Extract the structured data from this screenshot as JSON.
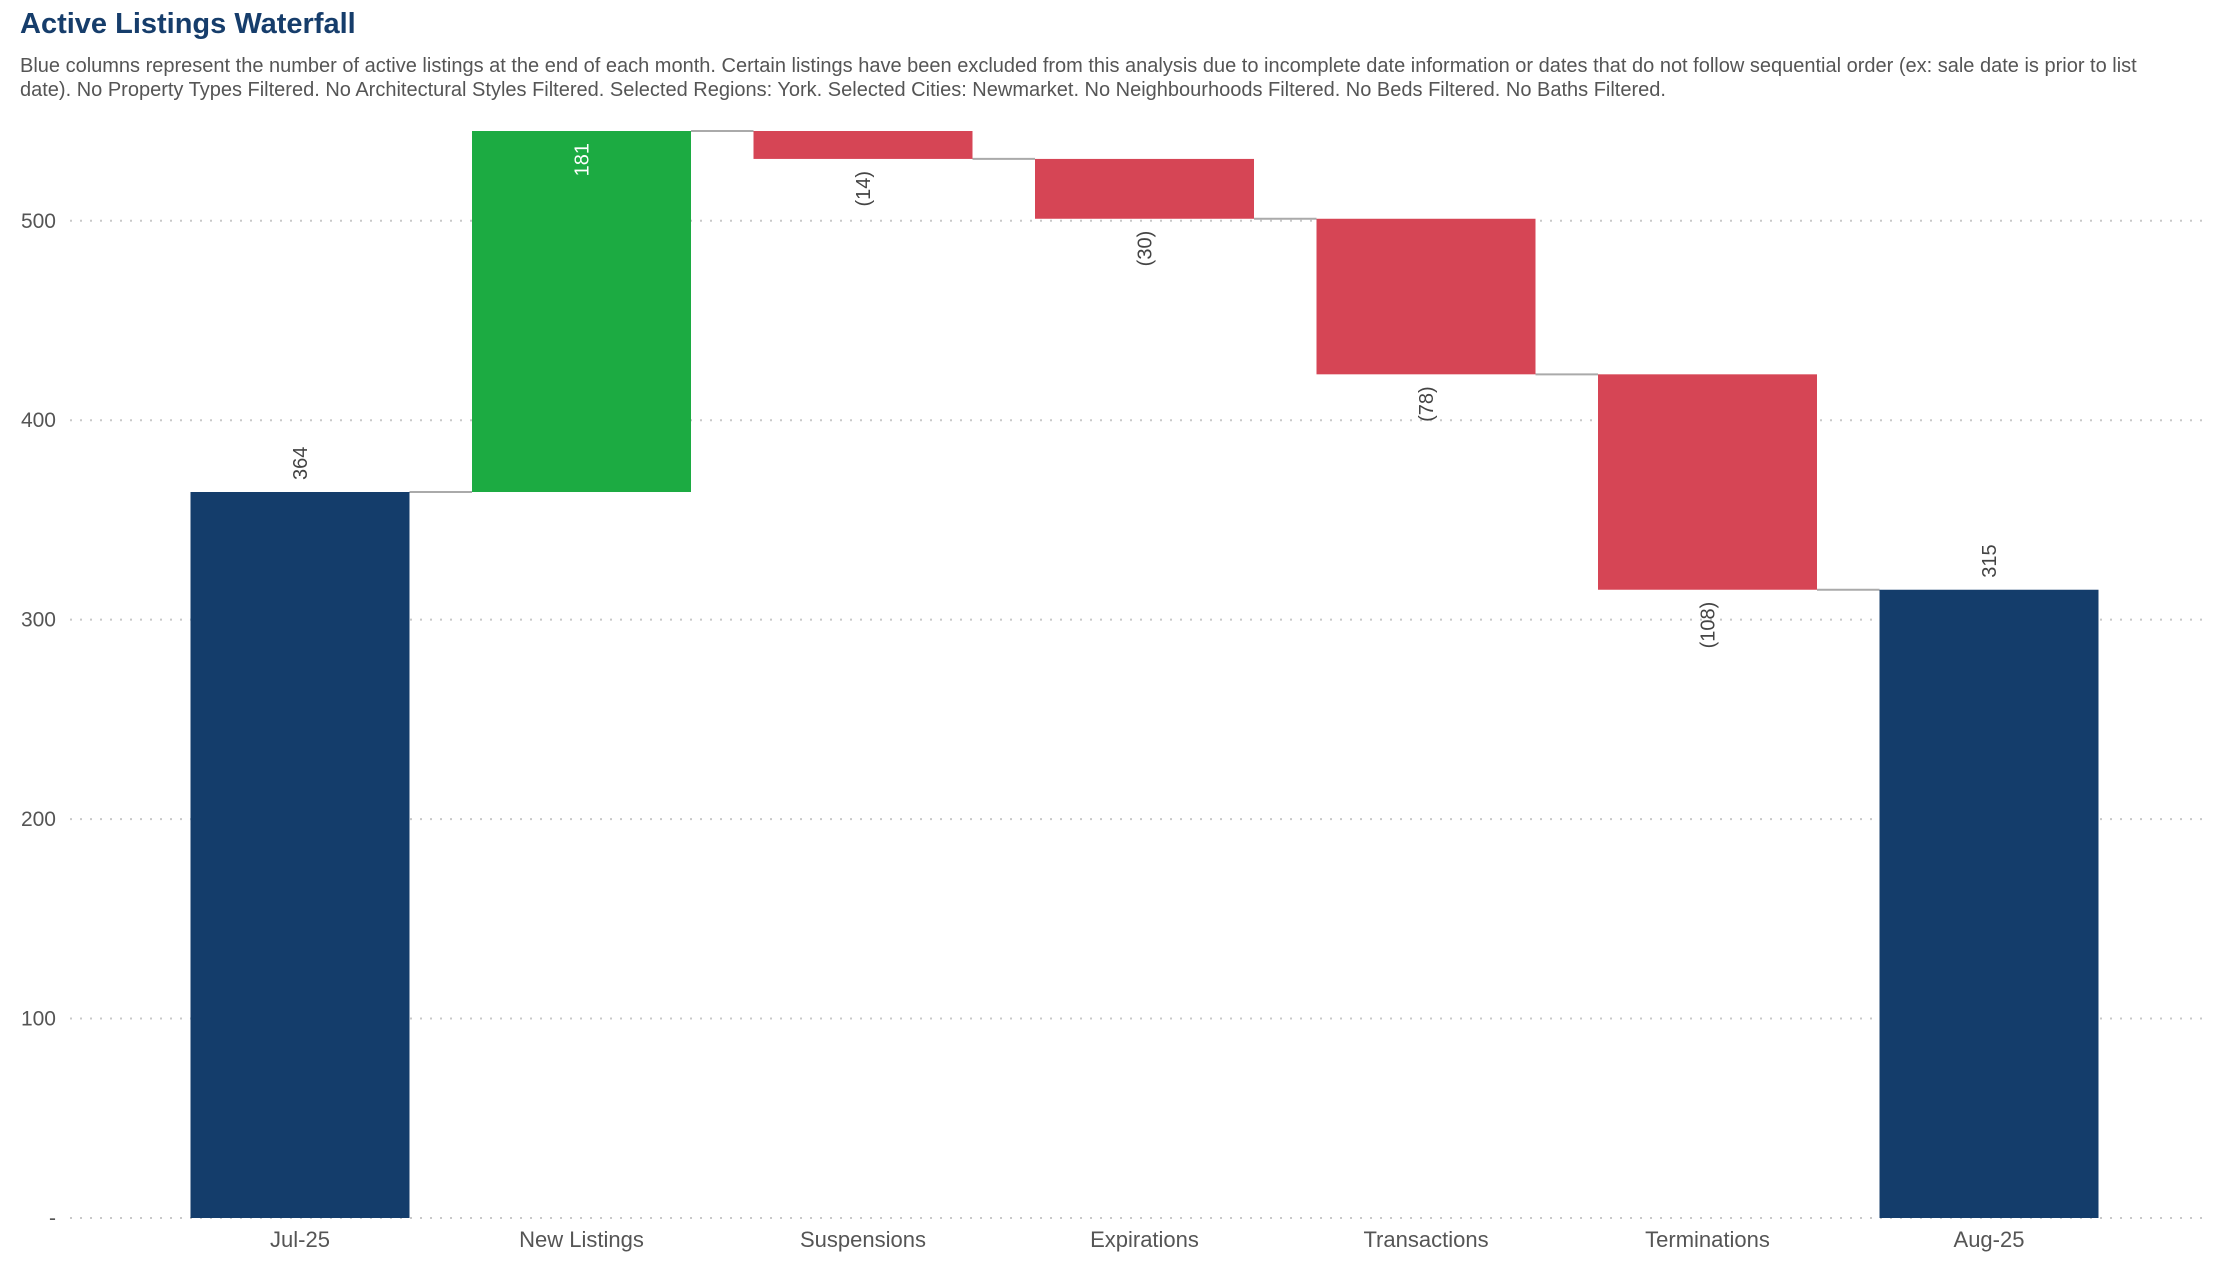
{
  "chart_data": {
    "type": "waterfall",
    "title": "Active Listings Waterfall",
    "subtitle": "Blue columns represent the number of active listings at the end of each month. Certain listings have been excluded from this analysis due to incomplete date information or dates that do not follow sequential order (ex: sale date is prior to list date). No Property Types Filtered. No Architectural Styles Filtered. Selected Regions: York. Selected Cities: Newmarket. No Neighbourhoods Filtered. No Beds Filtered. No Baths Filtered.",
    "ylim": [
      0,
      545
    ],
    "yticks": [
      0,
      100,
      200,
      300,
      400,
      500
    ],
    "ytick_labels": [
      "-",
      "100",
      "200",
      "300",
      "400",
      "500"
    ],
    "grid": true,
    "steps": [
      {
        "category": "Jul-25",
        "kind": "total",
        "value": 364,
        "label": "364"
      },
      {
        "category": "New Listings",
        "kind": "increase",
        "value": 181,
        "label": "181"
      },
      {
        "category": "Suspensions",
        "kind": "decrease",
        "value": -14,
        "label": "(14)"
      },
      {
        "category": "Expirations",
        "kind": "decrease",
        "value": -30,
        "label": "(30)"
      },
      {
        "category": "Transactions",
        "kind": "decrease",
        "value": -78,
        "label": "(78)"
      },
      {
        "category": "Terminations",
        "kind": "decrease",
        "value": -108,
        "label": "(108)"
      },
      {
        "category": "Aug-25",
        "kind": "total",
        "value": 315,
        "label": "315"
      }
    ],
    "colors": {
      "total": "#143d6b",
      "increase": "#1cab42",
      "decrease": "#d64555",
      "connector": "#aaaaaa",
      "grid": "#c8c8c8",
      "title": "#163d6b"
    }
  }
}
